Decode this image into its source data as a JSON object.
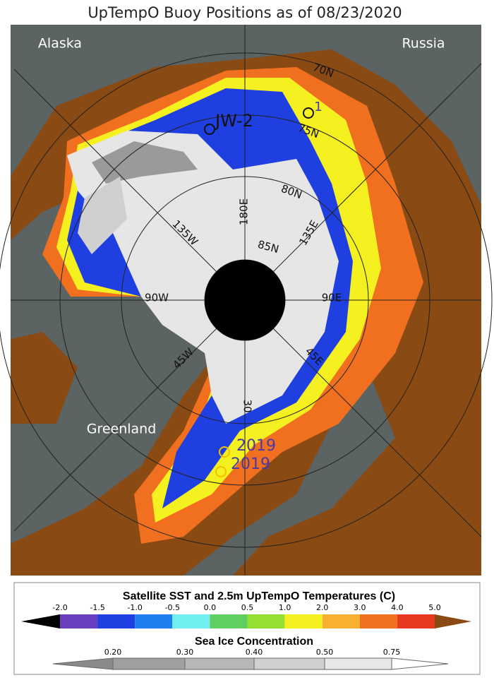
{
  "title": "UpTempO Buoy Positions as of 08/23/2020",
  "map": {
    "regions": [
      "Alaska",
      "Russia",
      "Greenland"
    ],
    "grid_labels": [
      "70N",
      "75N",
      "80N",
      "85N",
      "180E",
      "135W",
      "135E",
      "90W",
      "90E",
      "45W",
      "45E",
      "30"
    ],
    "buoys": [
      "JW-2",
      "1",
      "2019",
      "2019"
    ]
  },
  "sst_scale": {
    "title": "Satellite SST and 2.5m UpTempO Temperatures (C)",
    "ticks": [
      "-2.0",
      "-1.5",
      "-1.0",
      "-0.5",
      "0.0",
      "0.5",
      "1.0",
      "2.0",
      "3.0",
      "4.0",
      "5.0"
    ],
    "colors": [
      "#6a3fbf",
      "#1f3fe0",
      "#1e80ef",
      "#70eef0",
      "#5fd060",
      "#95e030",
      "#f5f020",
      "#f8b030",
      "#f07020",
      "#e83a20"
    ]
  },
  "ice_scale": {
    "title": "Sea Ice Concentration",
    "ticks": [
      "0.20",
      "0.30",
      "0.40",
      "0.50",
      "0.75"
    ]
  }
}
